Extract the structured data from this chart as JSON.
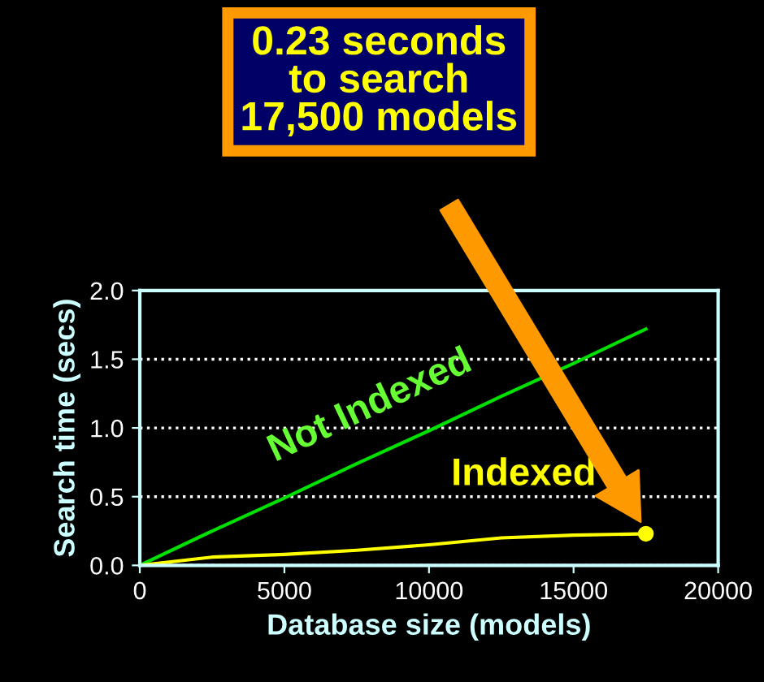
{
  "chart_data": {
    "type": "line",
    "xlabel": "Database size (models)",
    "ylabel": "Search time (secs)",
    "x": [
      0,
      2500,
      5000,
      7500,
      10000,
      12500,
      15000,
      17500
    ],
    "series": [
      {
        "name": "Not Indexed",
        "color": "#00e000",
        "values": [
          0,
          0.25,
          0.49,
          0.74,
          0.98,
          1.23,
          1.47,
          1.72
        ]
      },
      {
        "name": "Indexed",
        "color": "#ffff00",
        "values": [
          0,
          0.06,
          0.08,
          0.11,
          0.15,
          0.2,
          0.22,
          0.23
        ]
      }
    ],
    "xlim": [
      0,
      20000
    ],
    "xticks": [
      0,
      5000,
      10000,
      15000,
      20000
    ],
    "ylim": [
      0,
      2.0
    ],
    "yticks": [
      {
        "value": 0,
        "label": "0.0"
      },
      {
        "value": 0.5,
        "label": "0.5"
      },
      {
        "value": 1.0,
        "label": "1.0"
      },
      {
        "value": 1.5,
        "label": "1.5"
      },
      {
        "value": 2.0,
        "label": "2.0"
      }
    ],
    "grid": "y",
    "legend": false,
    "annotations": [
      "0.23 seconds\nto search\n17,500 models"
    ]
  }
}
